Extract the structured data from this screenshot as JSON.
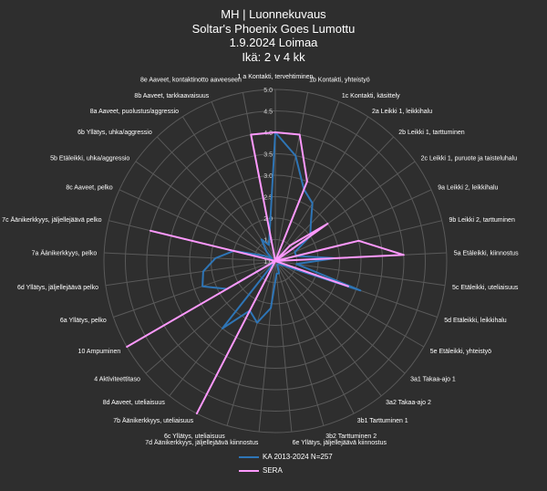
{
  "chart_data": {
    "type": "radar",
    "title": [
      "MH | Luonnekuvaus",
      "Soltar's Phoenix Goes Lumottu",
      "1.9.2024 Loimaa",
      "Ikä: 2 v 4 kk"
    ],
    "rmin": 1.0,
    "rmax": 5.0,
    "ticks": [
      "1.0",
      "1.5",
      "2.0",
      "2.5",
      "3.0",
      "3.5",
      "4.0",
      "4.5",
      "5.0"
    ],
    "grid": true,
    "legend_position": "bottom",
    "categories": [
      "1 a Kontakti, tervehtiminen",
      "1b Kontakti, yhteistyö",
      "1c Kontakti, käsittely",
      "2a Leikki 1, leikkihalu",
      "2b Leikki 1, tarttuminen",
      "2c Leikki 1, puruote ja taisteluhalu",
      "9a Leikki 2, leikkihalu",
      "9b Leikki 2, tarttuminen",
      "5a Etäleikki, kiinnostus",
      "5c Etäleikki, uteliaisuus",
      "5d Etäleikki, leikkihalu",
      "5e Etäleikki, yhteistyö",
      "3a1 Takaa-ajo 1",
      "3a2 Takaa-ajo 2",
      "3b1 Tarttuminen 1",
      "3b2 Tarttuminen 2",
      "6e Yllätys, jäljellejäävä kiinnostus",
      "7d Äänikerkkyys, jäljellejäävä kiinnostus",
      "6c Yllätys, uteliaisuus",
      "7b Äänikerkkyys, uteliaisuus",
      "8d Aaveet, uteliaisuus",
      "4 Aktiviteettitaso",
      "10 Ampuminen",
      "6a Yllätys, pelko",
      "6d Yllätys, jäljellejäävä pelko",
      "7a Äänikerkkyys, pelko",
      "7c Äänikerkkyys, jäljellejäävä pelko",
      "8c Aaveet, pelko",
      "5b Etäleikki, uhka/aggressio",
      "6b Yllätys, uhka/aggressio",
      "8a Aaveet, puolustus/aggressio",
      "8b Aaveet, tarkkaavaisuus",
      "8e Aaveet, kontaktinotto aaveeseen"
    ],
    "series": [
      {
        "name": "KA 2013-2024 N=257",
        "color": "#2e75b6",
        "values": [
          4.0,
          3.5,
          2.8,
          2.6,
          2.2,
          2.0,
          1.5,
          1.5,
          2.4,
          1.5,
          3.1,
          1.2,
          1.1,
          1.1,
          1.1,
          1.3,
          1.3,
          2.1,
          2.5,
          2.3,
          3.0,
          1.0,
          2.3,
          2.8,
          2.7,
          2.4,
          2.0,
          1.3,
          1.1,
          1.3,
          1.6,
          1.4,
          1.7
        ]
      },
      {
        "name": "SERA",
        "color": "#ff99ff",
        "values": [
          4.0,
          4.0,
          3.0,
          1.0,
          1.5,
          2.5,
          1.0,
          3.0,
          4.0,
          1.0,
          2.8,
          1.0,
          1.0,
          1.0,
          1.0,
          1.0,
          1.0,
          1.0,
          1.0,
          5.0,
          1.0,
          1.0,
          5.0,
          1.0,
          1.0,
          1.0,
          4.0,
          1.0,
          1.0,
          1.0,
          1.0,
          1.0,
          4.0
        ]
      }
    ]
  }
}
